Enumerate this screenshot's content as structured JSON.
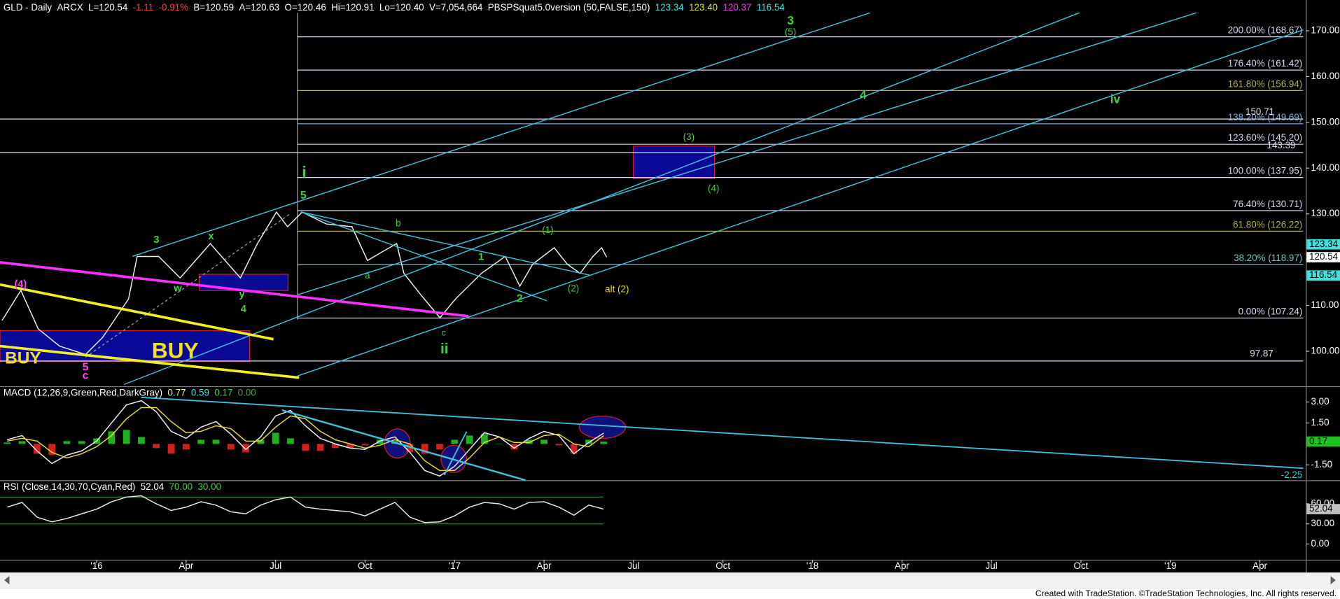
{
  "chart_data": [
    {
      "type": "line",
      "title_parts": [
        {
          "text": "GLD - Daily",
          "color": "#ffffff"
        },
        {
          "text": "ARCX",
          "color": "#ffffff"
        },
        {
          "text": "L=120.54",
          "color": "#ffffff"
        },
        {
          "text": "-1.11",
          "color": "#ff4040"
        },
        {
          "text": "-0.91%",
          "color": "#ff4040"
        },
        {
          "text": "B=120.59",
          "color": "#ffffff"
        },
        {
          "text": "A=120.63",
          "color": "#ffffff"
        },
        {
          "text": "O=120.46",
          "color": "#ffffff"
        },
        {
          "text": "Hi=120.91",
          "color": "#ffffff"
        },
        {
          "text": "Lo=120.40",
          "color": "#ffffff"
        },
        {
          "text": "V=7,054,664",
          "color": "#ffffff"
        },
        {
          "text": "PBSPSquat5.0version (50,FALSE,150)",
          "color": "#ffffff"
        },
        {
          "text": "123.34",
          "color": "#40e0e0"
        },
        {
          "text": "123.40",
          "color": "#e0e040"
        },
        {
          "text": "120.37",
          "color": "#e040e0"
        },
        {
          "text": "116.54",
          "color": "#40e0e0"
        }
      ],
      "x": [
        -3.17,
        -2.54,
        -1.96,
        -1.24,
        -0.37,
        0.2,
        1.07,
        1.36,
        2.08,
        2.8,
        3.81,
        4.82,
        5.39,
        6.03,
        6.4,
        6.89,
        7.7,
        8.56,
        9.08,
        9.57,
        10.06,
        10.3,
        10.87,
        11.51,
        12.03,
        12.9,
        13.7,
        14.19,
        14.62,
        15.34,
        15.78,
        16.21,
        16.64,
        16.93,
        17.1
      ],
      "values": [
        106.7,
        113.3,
        104.9,
        101.1,
        99.3,
        103,
        111.4,
        120.7,
        120.7,
        116,
        123.5,
        116,
        123.5,
        130.4,
        127.2,
        130.4,
        127.8,
        127.2,
        119.8,
        121.7,
        123.5,
        117,
        112.3,
        107.3,
        111.4,
        117,
        120.7,
        114.2,
        119,
        122.6,
        119,
        117,
        120.7,
        122.6,
        120.54
      ],
      "color": "#e8f0e8",
      "xlim": [
        -3.24,
        40.54
      ],
      "ylim": [
        92.35,
        176.72
      ],
      "yticks": [
        {
          "value": 100,
          "label": "100.00"
        },
        {
          "value": 110,
          "label": "110.00"
        },
        {
          "value": 120,
          "label": "120.00"
        },
        {
          "value": 130,
          "label": "130.00"
        },
        {
          "value": 140,
          "label": "140.00"
        },
        {
          "value": 150,
          "label": "150.00"
        },
        {
          "value": 160,
          "label": "160.00"
        },
        {
          "value": 170,
          "label": "170.00"
        }
      ],
      "levels": [
        {
          "value": 168.67,
          "label": "200.00% (168.67)",
          "color": "#d8d8f0"
        },
        {
          "value": 161.42,
          "label": "176.40% (161.42)",
          "color": "#d8d8f0"
        },
        {
          "value": 156.94,
          "label": "161.80% (156.94)",
          "color": "#b0b050"
        },
        {
          "value": 149.69,
          "label": "138.20% (149.69)",
          "color": "#7fa8d8"
        },
        {
          "value": 145.2,
          "label": "123.60% (145.20)",
          "color": "#d8d8f0"
        },
        {
          "value": 137.95,
          "label": "100.00% (137.95)",
          "color": "#d8d8f0"
        },
        {
          "value": 130.71,
          "label": "76.40% (130.71)",
          "color": "#d8d8f0"
        },
        {
          "value": 126.22,
          "label": "61.80% (126.22)",
          "color": "#b0b050"
        },
        {
          "value": 118.97,
          "label": "38.20% (118.97)",
          "color": "#70c0c0"
        },
        {
          "value": 107.24,
          "label": "0.00% (107.24)",
          "color": "#d8d8f0"
        }
      ],
      "hlines": [
        150.71,
        143.39,
        97.87
      ],
      "last_markers": [
        {
          "value": 123.34,
          "color": "#40e0e0"
        },
        {
          "value": 120.54,
          "color": "#ffffff"
        },
        {
          "value": 116.54,
          "color": "#40e0e0"
        }
      ],
      "annotations": [
        {
          "text": "3",
          "color": "#40d040"
        },
        {
          "text": "(5)",
          "color": "#40d040"
        },
        {
          "text": "4",
          "color": "#40d040"
        },
        {
          "text": "iv",
          "color": "#40d040"
        },
        {
          "text": "(3)",
          "color": "#40d040"
        },
        {
          "text": "(4)",
          "color": "#40d040"
        },
        {
          "text": "i",
          "color": "#40d040"
        },
        {
          "text": "5",
          "color": "#40d040"
        },
        {
          "text": "b",
          "color": "#40d040"
        },
        {
          "text": "(1)",
          "color": "#40d040"
        },
        {
          "text": "1",
          "color": "#40d040"
        },
        {
          "text": "a",
          "color": "#40d040"
        },
        {
          "text": "(2)",
          "color": "#40d040"
        },
        {
          "text": "alt (2)",
          "color": "#e8d820"
        },
        {
          "text": "2",
          "color": "#40d040"
        },
        {
          "text": "c",
          "color": "#40d040"
        },
        {
          "text": "ii",
          "color": "#40d040"
        },
        {
          "text": "3",
          "color": "#40d040"
        },
        {
          "text": "x",
          "color": "#40d040"
        },
        {
          "text": "w",
          "color": "#40d040"
        },
        {
          "text": "y",
          "color": "#40d040"
        },
        {
          "text": "4",
          "color": "#40d040"
        },
        {
          "text": "(4)",
          "color": "#ff40ff"
        },
        {
          "text": "5",
          "color": "#ff40ff"
        },
        {
          "text": "c",
          "color": "#ff40ff"
        },
        {
          "text": "BUY",
          "color": "#f0e020"
        },
        {
          "text": "BUY",
          "color": "#f0e020"
        }
      ]
    },
    {
      "type": "line",
      "title_parts": [
        {
          "text": "MACD (12,26,9,Green,Red,DarkGray)",
          "color": "#ffffff"
        },
        {
          "text": "0.77",
          "color": "#f0f0a0"
        },
        {
          "text": "0.59",
          "color": "#40e0e0"
        },
        {
          "text": "0.17",
          "color": "#40d040"
        },
        {
          "text": "0.00",
          "color": "#40a040"
        }
      ],
      "x": [
        -3,
        -2.5,
        -2,
        -1.5,
        -1,
        -0.5,
        0,
        0.5,
        1,
        1.5,
        2,
        2.5,
        3,
        3.5,
        4,
        4.5,
        5,
        5.5,
        6,
        6.5,
        7,
        7.5,
        8,
        8.5,
        9,
        9.5,
        10,
        10.5,
        11,
        11.5,
        12,
        12.5,
        13,
        13.5,
        14,
        14.5,
        15,
        15.5,
        16,
        16.5,
        17
      ],
      "series": [
        {
          "color": "#f0f0f0",
          "values": [
            0.3,
            0.6,
            -0.5,
            -1.4,
            -0.8,
            -0.5,
            0.2,
            1.5,
            2.8,
            3.1,
            2.3,
            0.9,
            0.4,
            1.2,
            1.6,
            0.7,
            -0.4,
            0.5,
            2.0,
            2.4,
            1.3,
            0.4,
            0.0,
            -0.3,
            -0.4,
            0.2,
            0.5,
            -0.6,
            -1.9,
            -2.3,
            -1.6,
            -0.4,
            0.8,
            0.5,
            -0.3,
            0.4,
            0.9,
            0.6,
            -0.7,
            0.1,
            0.77
          ]
        },
        {
          "color": "#e8d830",
          "values": [
            0.2,
            0.4,
            0.2,
            -0.6,
            -1.0,
            -0.7,
            -0.2,
            0.6,
            1.8,
            2.6,
            2.6,
            1.6,
            0.8,
            0.9,
            1.3,
            1.1,
            0.2,
            0.2,
            1.2,
            2.0,
            1.8,
            0.9,
            0.3,
            0.0,
            -0.3,
            -0.1,
            0.3,
            0.0,
            -1.2,
            -1.9,
            -1.9,
            -1.0,
            0.1,
            0.5,
            0.1,
            0.1,
            0.6,
            0.7,
            0.0,
            -0.2,
            0.59
          ]
        }
      ],
      "hist": {
        "up_color": "#20b020",
        "down_color": "#d02020",
        "values": [
          0.1,
          0.2,
          -0.7,
          -0.8,
          0.2,
          0.2,
          0.4,
          0.9,
          1.0,
          0.5,
          -0.3,
          -0.7,
          -0.4,
          0.3,
          0.3,
          -0.4,
          -0.6,
          0.3,
          0.8,
          0.4,
          -0.5,
          -0.5,
          -0.3,
          -0.3,
          -0.1,
          0.3,
          0.2,
          -0.6,
          -0.7,
          -0.4,
          0.3,
          0.6,
          0.7,
          0.0,
          -0.4,
          0.3,
          0.3,
          -0.1,
          -0.7,
          0.3,
          0.17
        ]
      },
      "xlim": [
        -3.24,
        40.54
      ],
      "ylim": [
        -2.6,
        4.07
      ],
      "yticks": [
        {
          "value": 3,
          "label": "3.00"
        },
        {
          "value": 1.5,
          "label": "1.50"
        },
        {
          "value": -1.5,
          "label": "-1.50"
        }
      ],
      "last_markers": [
        {
          "value": 0.17,
          "color": "#20c020"
        }
      ],
      "trendline_end": -2.25
    },
    {
      "type": "line",
      "title_parts": [
        {
          "text": "RSI (Close,14,30,70,Cyan,Red)",
          "color": "#ffffff"
        },
        {
          "text": "52.04",
          "color": "#ffffff"
        },
        {
          "text": "70.00",
          "color": "#40d040"
        },
        {
          "text": "30.00",
          "color": "#40d040"
        }
      ],
      "x": [
        -3,
        -2.5,
        -2,
        -1.5,
        -1,
        -0.5,
        0,
        0.5,
        1,
        1.5,
        2,
        2.5,
        3,
        3.5,
        4,
        4.5,
        5,
        5.5,
        6,
        6.5,
        7,
        7.5,
        8,
        8.5,
        9,
        9.5,
        10,
        10.5,
        11,
        11.5,
        12,
        12.5,
        13,
        13.5,
        14,
        14.5,
        15,
        15.5,
        16,
        16.5,
        17
      ],
      "values": [
        55,
        62,
        40,
        33,
        38,
        45,
        52,
        63,
        70,
        72,
        60,
        50,
        55,
        63,
        58,
        48,
        45,
        58,
        66,
        70,
        55,
        52,
        50,
        48,
        42,
        52,
        62,
        40,
        32,
        33,
        42,
        55,
        62,
        60,
        52,
        62,
        63,
        55,
        43,
        58,
        52.04
      ],
      "color": "#e8e8e8",
      "levels": [
        {
          "value": 70,
          "color": "#2a8a2a"
        },
        {
          "value": 30,
          "color": "#2a8a2a"
        }
      ],
      "xlim": [
        -3.24,
        40.54
      ],
      "ylim": [
        -23.5,
        93.9
      ],
      "yticks": [
        {
          "value": 60,
          "label": "60.00"
        },
        {
          "value": 30,
          "label": "30.00"
        },
        {
          "value": 0,
          "label": "0.00"
        }
      ],
      "xticks": [
        {
          "value": 0,
          "label": "'16"
        },
        {
          "value": 3,
          "label": "Apr"
        },
        {
          "value": 6,
          "label": "Jul"
        },
        {
          "value": 9,
          "label": "Oct"
        },
        {
          "value": 12,
          "label": "'17"
        },
        {
          "value": 15,
          "label": "Apr"
        },
        {
          "value": 18,
          "label": "Jul"
        },
        {
          "value": 21,
          "label": "Oct"
        },
        {
          "value": 24,
          "label": "'18"
        },
        {
          "value": 27,
          "label": "Apr"
        },
        {
          "value": 30,
          "label": "Jul"
        },
        {
          "value": 33,
          "label": "Oct"
        },
        {
          "value": 36,
          "label": "'19"
        },
        {
          "value": 39,
          "label": "Apr"
        }
      ],
      "last_markers": [
        {
          "value": 52.04,
          "color": "#c0c0c0"
        }
      ]
    }
  ],
  "footer": "Created with TradeStation. ©TradeStation Technologies, Inc. All rights reserved."
}
